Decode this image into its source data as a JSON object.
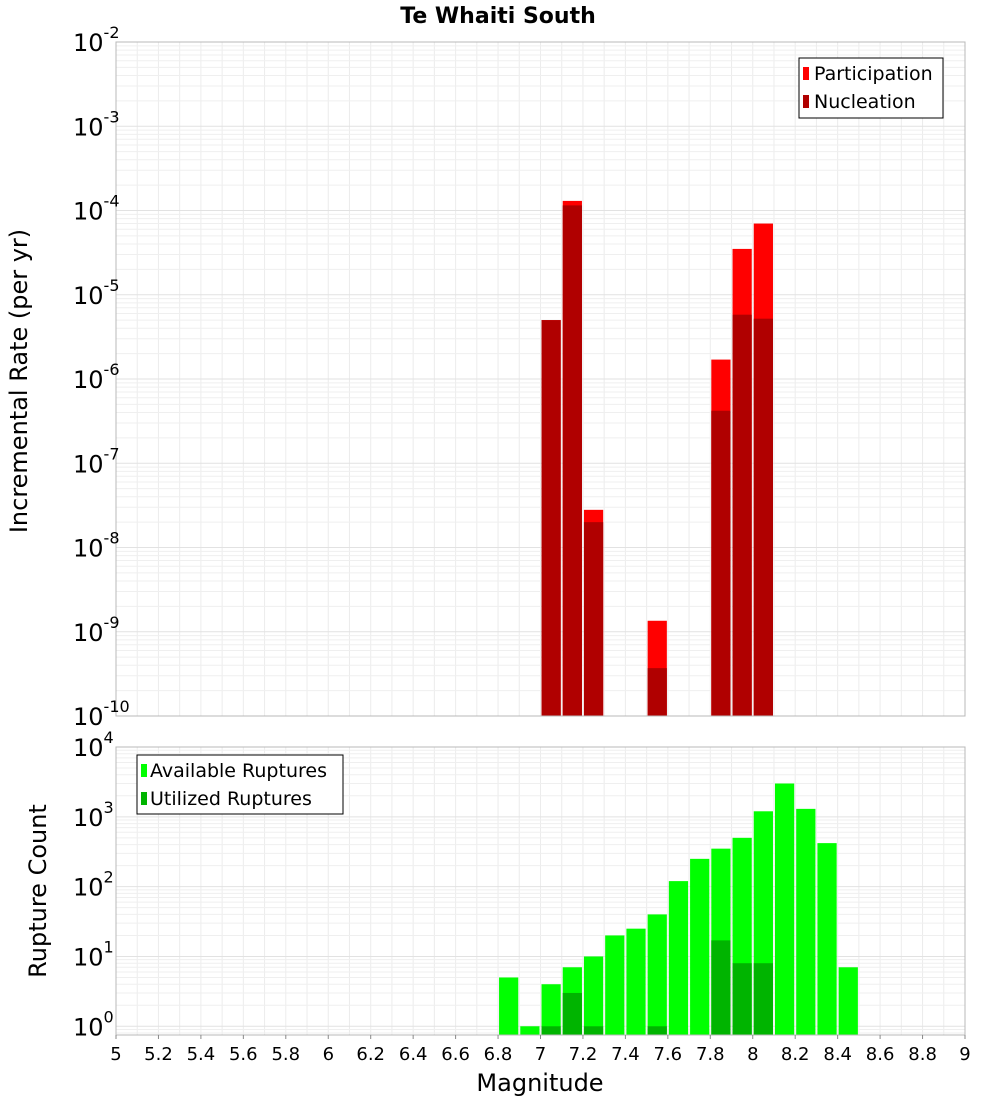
{
  "chart_data": [
    {
      "type": "bar",
      "title": "Te Whaiti South",
      "ylabel": "Incremental Rate (per yr)",
      "xlabel": "",
      "xlim": [
        5,
        9
      ],
      "ylim": [
        1e-10,
        0.01
      ],
      "yscale": "log",
      "grid": true,
      "legend_position": "top-right",
      "bar_width": 0.1,
      "x_ticks": [],
      "y_ticks": [
        {
          "base": "10",
          "exp": "-2"
        },
        {
          "base": "10",
          "exp": "-3"
        },
        {
          "base": "10",
          "exp": "-4"
        },
        {
          "base": "10",
          "exp": "-5"
        },
        {
          "base": "10",
          "exp": "-6"
        },
        {
          "base": "10",
          "exp": "-7"
        },
        {
          "base": "10",
          "exp": "-8"
        },
        {
          "base": "10",
          "exp": "-9"
        },
        {
          "base": "10",
          "exp": "-10"
        }
      ],
      "series": [
        {
          "name": "Participation",
          "color": "#ff0000",
          "x": [
            7.05,
            7.15,
            7.25,
            7.55,
            7.85,
            7.95,
            8.05
          ],
          "values": [
            5e-06,
            0.00013,
            2.8e-08,
            1.35e-09,
            1.7e-06,
            3.5e-05,
            7e-05
          ]
        },
        {
          "name": "Nucleation",
          "color": "#b00000",
          "x": [
            7.05,
            7.15,
            7.25,
            7.55,
            7.85,
            7.95,
            8.05
          ],
          "values": [
            5e-06,
            0.000115,
            2e-08,
            3.7e-10,
            4.2e-07,
            5.8e-06,
            5.2e-06
          ]
        }
      ]
    },
    {
      "type": "bar",
      "title": "",
      "ylabel": "Rupture Count",
      "xlabel": "Magnitude",
      "xlim": [
        5,
        9
      ],
      "ylim": [
        0.75,
        10000
      ],
      "yscale": "log",
      "grid": true,
      "legend_position": "top-left",
      "bar_width": 0.1,
      "x_ticks": [
        "5",
        "5.2",
        "5.4",
        "5.6",
        "5.8",
        "6",
        "6.2",
        "6.4",
        "6.6",
        "6.8",
        "7",
        "7.2",
        "7.4",
        "7.6",
        "7.8",
        "8",
        "8.2",
        "8.4",
        "8.6",
        "8.8",
        "9"
      ],
      "y_ticks": [
        {
          "base": "10",
          "exp": "4"
        },
        {
          "base": "10",
          "exp": "3"
        },
        {
          "base": "10",
          "exp": "2"
        },
        {
          "base": "10",
          "exp": "1"
        },
        {
          "base": "10",
          "exp": "0"
        }
      ],
      "series": [
        {
          "name": "Available Ruptures",
          "color": "#00ff00",
          "x": [
            6.85,
            6.95,
            7.05,
            7.15,
            7.25,
            7.35,
            7.45,
            7.55,
            7.65,
            7.75,
            7.85,
            7.95,
            8.05,
            8.15,
            8.25,
            8.35,
            8.45
          ],
          "values": [
            5,
            1,
            4,
            7,
            10,
            20,
            25,
            40,
            120,
            250,
            350,
            500,
            1200,
            3000,
            1300,
            420,
            7
          ]
        },
        {
          "name": "Utilized Ruptures",
          "color": "#00b400",
          "x": [
            7.05,
            7.15,
            7.25,
            7.55,
            7.85,
            7.95,
            8.05
          ],
          "values": [
            1,
            3,
            1,
            1,
            17,
            8,
            8
          ]
        }
      ]
    }
  ]
}
